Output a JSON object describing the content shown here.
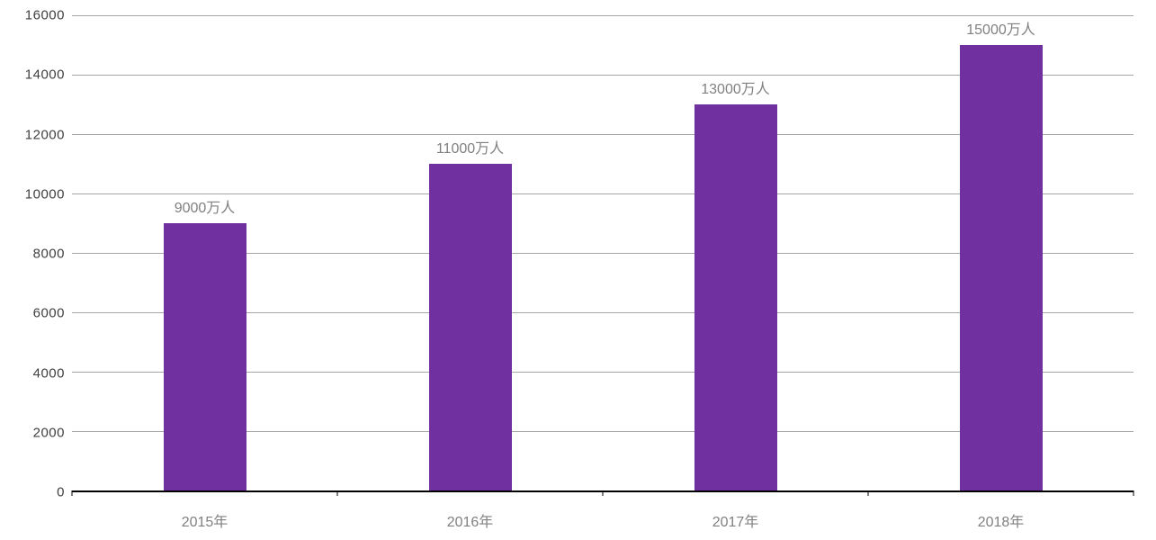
{
  "chart_data": {
    "type": "bar",
    "title": "",
    "xlabel": "",
    "ylabel": "",
    "categories": [
      "2015年",
      "2016年",
      "2017年",
      "2018年"
    ],
    "values": [
      9000,
      11000,
      13000,
      15000
    ],
    "data_labels": [
      "9000万人",
      "11000万人",
      "13000万人",
      "15000万人"
    ],
    "unit": "万人",
    "ylim": [
      0,
      16000
    ],
    "ytick_step": 2000,
    "yticks": [
      0,
      2000,
      4000,
      6000,
      8000,
      10000,
      12000,
      14000,
      16000
    ],
    "grid": true,
    "legend_position": "none",
    "bar_color": "#7030a0",
    "data_label_color": "#808080",
    "x_label_color": "#808080",
    "y_label_color": "#3f3f3f",
    "gridline_color": "#a6a6a6",
    "axis_color": "#000000"
  }
}
